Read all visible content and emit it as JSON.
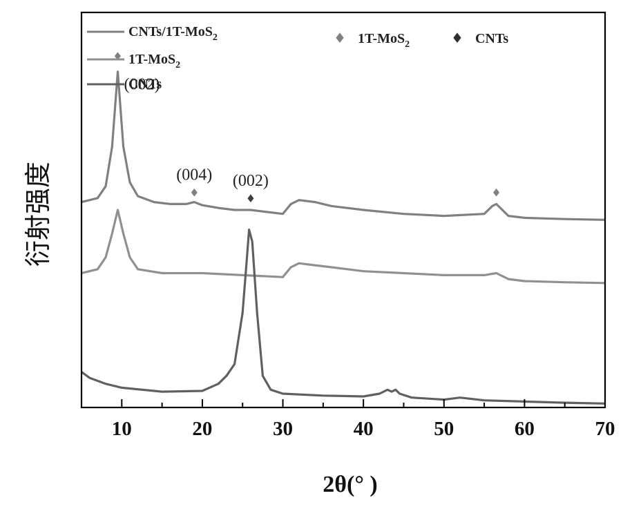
{
  "chart_data": {
    "type": "line",
    "xlabel": "2θ(° )",
    "ylabel": "衍射强度",
    "xlim": [
      5,
      70
    ],
    "xticks": [
      "10",
      "20",
      "30",
      "40",
      "50",
      "60",
      "70"
    ],
    "yticks": false,
    "grid": false,
    "legend_placement": "top-left",
    "legend": [
      {
        "label": "CNTs/1T-MoS",
        "sub": "2"
      },
      {
        "label": "1T-MoS",
        "sub": "2"
      },
      {
        "label": "CNTs",
        "sub": ""
      }
    ],
    "marker_legend": [
      {
        "symbol": "♦",
        "label": "1T-MoS",
        "sub": "2"
      },
      {
        "symbol": "♦",
        "label": "CNTs",
        "sub": ""
      }
    ],
    "series": [
      {
        "name": "CNTs/1T-MoS2",
        "color": "#808080",
        "x": [
          5,
          7,
          8,
          8.8,
          9.5,
          10.2,
          11,
          12,
          14,
          16,
          18,
          19,
          20,
          22,
          24,
          26,
          28,
          30,
          31,
          32,
          34,
          36,
          40,
          45,
          50,
          55,
          56,
          56.5,
          57,
          58,
          60,
          65,
          70
        ],
        "y": [
          0.52,
          0.53,
          0.56,
          0.66,
          0.85,
          0.66,
          0.57,
          0.535,
          0.52,
          0.515,
          0.515,
          0.52,
          0.512,
          0.505,
          0.5,
          0.5,
          0.495,
          0.49,
          0.515,
          0.525,
          0.52,
          0.51,
          0.5,
          0.49,
          0.485,
          0.49,
          0.51,
          0.515,
          0.505,
          0.485,
          0.48,
          0.477,
          0.475
        ]
      },
      {
        "name": "1T-MoS2",
        "color": "#909090",
        "x": [
          5,
          7,
          8,
          8.8,
          9.5,
          10.2,
          11,
          12,
          15,
          20,
          25,
          30,
          31,
          32,
          34,
          36,
          40,
          45,
          50,
          55,
          56.5,
          58,
          60,
          65,
          70
        ],
        "y": [
          0.34,
          0.35,
          0.38,
          0.44,
          0.5,
          0.44,
          0.38,
          0.35,
          0.34,
          0.34,
          0.335,
          0.33,
          0.355,
          0.365,
          0.36,
          0.355,
          0.345,
          0.34,
          0.335,
          0.335,
          0.34,
          0.325,
          0.32,
          0.317,
          0.315
        ]
      },
      {
        "name": "CNTs",
        "color": "#606060",
        "x": [
          5,
          6,
          8,
          10,
          15,
          20,
          22,
          23,
          24,
          25,
          25.5,
          25.8,
          26.2,
          26.8,
          27.5,
          28.5,
          30,
          35,
          40,
          42,
          43,
          43.5,
          44,
          44.5,
          46,
          50,
          52,
          55,
          60,
          65,
          70
        ],
        "y": [
          0.09,
          0.075,
          0.06,
          0.05,
          0.04,
          0.042,
          0.06,
          0.08,
          0.11,
          0.24,
          0.37,
          0.45,
          0.42,
          0.24,
          0.08,
          0.045,
          0.035,
          0.03,
          0.028,
          0.035,
          0.045,
          0.04,
          0.045,
          0.035,
          0.025,
          0.02,
          0.025,
          0.018,
          0.015,
          0.012,
          0.01
        ]
      }
    ],
    "markers": [
      {
        "symbol": "♦",
        "color": "#808080",
        "x": 9.5,
        "y": 0.89,
        "label": ""
      },
      {
        "symbol": "♦",
        "color": "#808080",
        "x": 19,
        "y": 0.545,
        "label": "(004)"
      },
      {
        "symbol": "♦",
        "color": "#404040",
        "x": 26,
        "y": 0.53,
        "label": "(002)"
      },
      {
        "symbol": "♦",
        "color": "#808080",
        "x": 56.5,
        "y": 0.545,
        "label": ""
      }
    ],
    "annotations": [
      {
        "text": "(002)",
        "x": 12.5,
        "y": 0.805
      }
    ]
  }
}
